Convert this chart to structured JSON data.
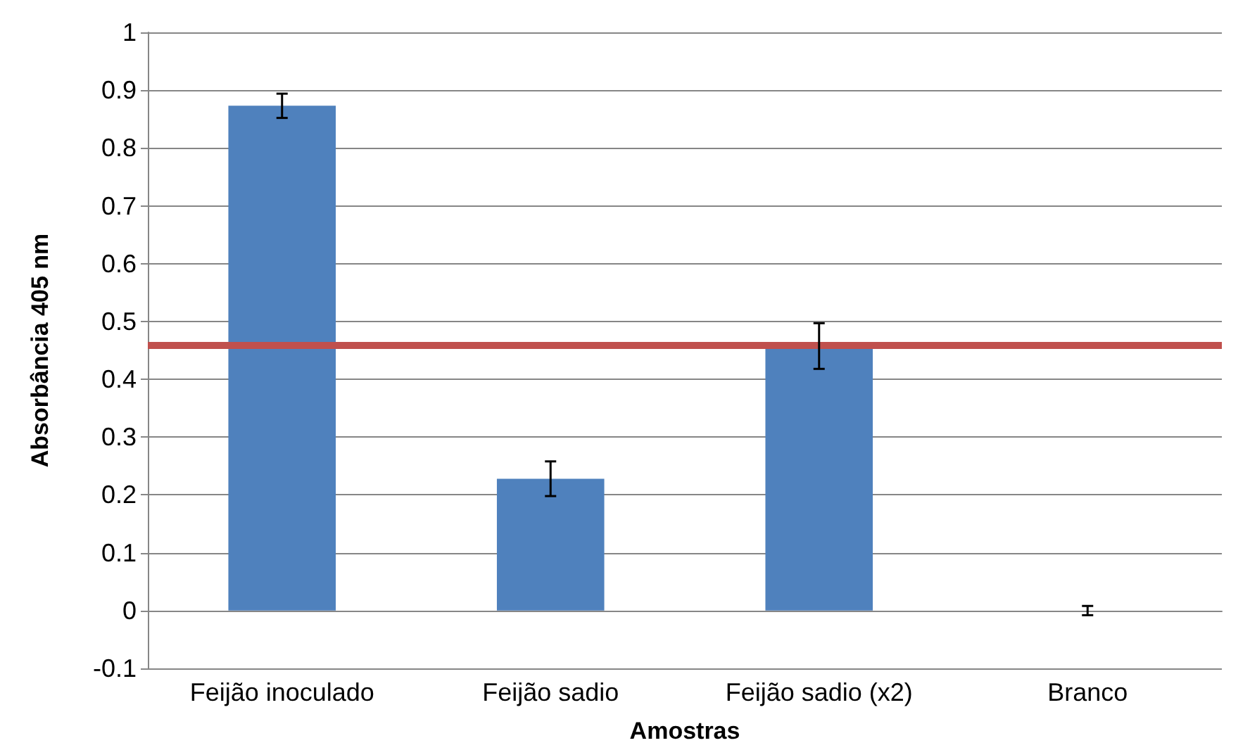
{
  "chart_data": {
    "type": "bar",
    "xlabel": "Amostras",
    "ylabel": "Absorbância 405 nm",
    "categories": [
      "Feijão inoculado",
      "Feijão sadio",
      "Feijão sadio (x2)",
      "Branco"
    ],
    "values": [
      0.873,
      0.228,
      0.46,
      0
    ],
    "errors": [
      [
        0.852,
        0.894
      ],
      [
        0.198,
        0.258
      ],
      [
        0.418,
        0.497
      ],
      [
        -0.008,
        0.008
      ]
    ],
    "color": "#4f81bd",
    "ylim": [
      -0.1,
      1
    ],
    "yticks": [
      -0.1,
      0,
      0.1,
      0.2,
      0.3,
      0.4,
      0.5,
      0.6,
      0.7,
      0.8,
      0.9,
      1
    ],
    "grid": "y",
    "ref_lines": [
      {
        "axis": "y",
        "value": 0.462,
        "color": "#c0504d"
      }
    ]
  }
}
